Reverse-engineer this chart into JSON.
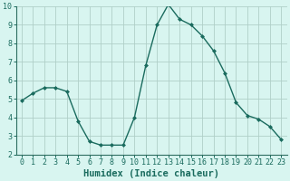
{
  "x": [
    0,
    1,
    2,
    3,
    4,
    5,
    6,
    7,
    8,
    9,
    10,
    11,
    12,
    13,
    14,
    15,
    16,
    17,
    18,
    19,
    20,
    21,
    22,
    23
  ],
  "y": [
    4.9,
    5.3,
    5.6,
    5.6,
    5.4,
    3.8,
    2.7,
    2.5,
    2.5,
    2.5,
    4.0,
    6.8,
    9.0,
    10.1,
    9.3,
    9.0,
    8.4,
    7.6,
    6.4,
    4.8,
    4.1,
    3.9,
    3.5,
    2.8
  ],
  "line_color": "#1a6b5e",
  "marker": "D",
  "marker_size": 2.0,
  "bg_color": "#d8f5f0",
  "grid_color": "#b0cfc8",
  "xlabel": "Humidex (Indice chaleur)",
  "xlabel_fontsize": 7.5,
  "tick_fontsize": 6.0,
  "ylim": [
    2,
    10
  ],
  "xlim": [
    -0.5,
    23.5
  ],
  "yticks": [
    2,
    3,
    4,
    5,
    6,
    7,
    8,
    9,
    10
  ],
  "xticks": [
    0,
    1,
    2,
    3,
    4,
    5,
    6,
    7,
    8,
    9,
    10,
    11,
    12,
    13,
    14,
    15,
    16,
    17,
    18,
    19,
    20,
    21,
    22,
    23
  ],
  "line_width": 1.0,
  "spine_color": "#2d6e60"
}
